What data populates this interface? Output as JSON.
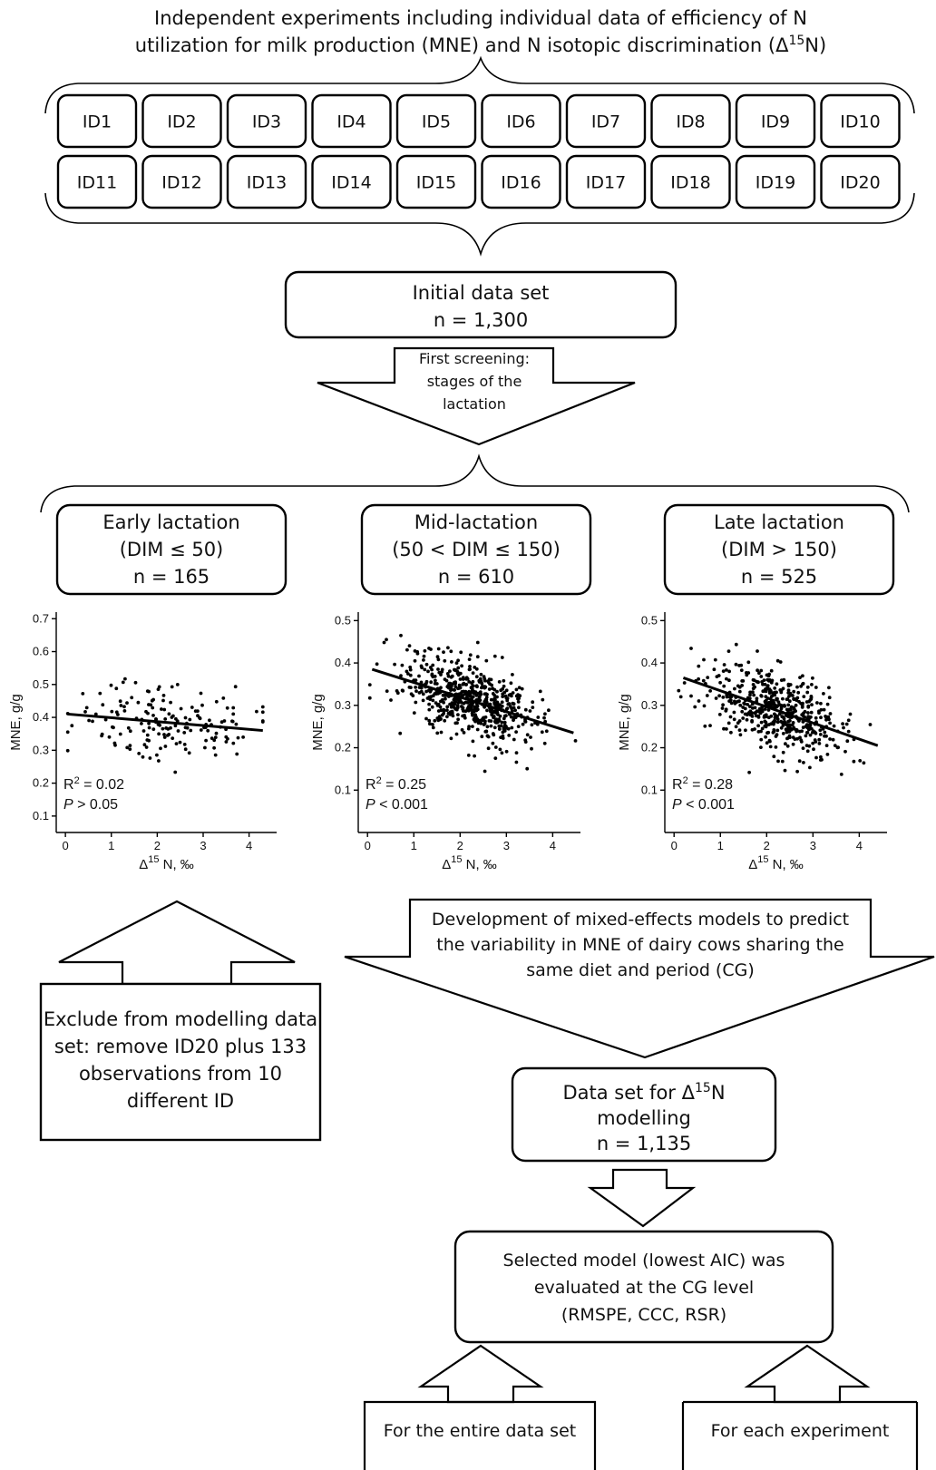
{
  "header": {
    "line1": "Independent experiments including individual data of efficiency of N",
    "line2a": "utilization for milk production (MNE) and N isotopic discrimination (Δ",
    "line2sup": "15",
    "line2b": "N)"
  },
  "experiments": [
    "ID1",
    "ID2",
    "ID3",
    "ID4",
    "ID5",
    "ID6",
    "ID7",
    "ID8",
    "ID9",
    "ID10",
    "ID11",
    "ID12",
    "ID13",
    "ID14",
    "ID15",
    "ID16",
    "ID17",
    "ID18",
    "ID19",
    "ID20"
  ],
  "initial": {
    "line1": "Initial data set",
    "line2": "n = 1,300"
  },
  "screening": {
    "line1": "First screening:",
    "line2": "stages of the",
    "line3": "lactation"
  },
  "stages": [
    {
      "line1": "Early lactation",
      "line2": "(DIM ≤ 50)",
      "line3": "n = 165"
    },
    {
      "line1": "Mid-lactation",
      "line2": "(50 < DIM ≤ 150)",
      "line3": "n = 610"
    },
    {
      "line1": "Late lactation",
      "line2": "(DIM > 150)",
      "line3": "n = 525"
    }
  ],
  "chart_data": [
    {
      "type": "scatter",
      "title": "Early lactation",
      "xlabel_pre": "Δ",
      "xlabel_sup": "15",
      "xlabel_post": " N, ‰",
      "ylabel": "MNE, g/g",
      "xticks": [
        "0",
        "1",
        "2",
        "3",
        "4"
      ],
      "yticks": [
        "0.1",
        "0.2",
        "0.3",
        "0.4",
        "0.5",
        "0.6",
        "0.7"
      ],
      "xlim": [
        -0.2,
        4.6
      ],
      "ylim": [
        0.05,
        0.72
      ],
      "n": 165,
      "x_range": [
        0.05,
        4.3
      ],
      "fit_line": {
        "x": [
          0.05,
          4.3
        ],
        "y": [
          0.41,
          0.36
        ]
      },
      "stat1_pre": "R",
      "stat1_sup": "2",
      "stat1_post": " = 0.02",
      "stat2_italic": "P",
      "stat2_post": " > 0.05"
    },
    {
      "type": "scatter",
      "title": "Mid-lactation",
      "xlabel_pre": "Δ",
      "xlabel_sup": "15",
      "xlabel_post": " N, ‰",
      "ylabel": "MNE, g/g",
      "xticks": [
        "0",
        "1",
        "2",
        "3",
        "4"
      ],
      "yticks": [
        "0.1",
        "0.2",
        "0.3",
        "0.4",
        "0.5"
      ],
      "xlim": [
        -0.2,
        4.6
      ],
      "ylim": [
        0.0,
        0.52
      ],
      "n": 610,
      "x_range": [
        0.05,
        4.5
      ],
      "fit_line": {
        "x": [
          0.1,
          4.45
        ],
        "y": [
          0.385,
          0.235
        ]
      },
      "stat1_pre": "R",
      "stat1_sup": "2",
      "stat1_post": " = 0.25",
      "stat2_italic": "P",
      "stat2_post": " < 0.001"
    },
    {
      "type": "scatter",
      "title": "Late lactation",
      "xlabel_pre": "Δ",
      "xlabel_sup": "15",
      "xlabel_post": " N, ‰",
      "ylabel": "MNE, g/g",
      "xticks": [
        "0",
        "1",
        "2",
        "3",
        "4"
      ],
      "yticks": [
        "0.1",
        "0.2",
        "0.3",
        "0.4",
        "0.5"
      ],
      "xlim": [
        -0.2,
        4.6
      ],
      "ylim": [
        0.0,
        0.52
      ],
      "n": 525,
      "x_range": [
        0.1,
        4.4
      ],
      "fit_line": {
        "x": [
          0.2,
          4.4
        ],
        "y": [
          0.365,
          0.205
        ]
      },
      "stat1_pre": "R",
      "stat1_sup": "2",
      "stat1_post": " = 0.28",
      "stat2_italic": "P",
      "stat2_post": " < 0.001"
    }
  ],
  "development": {
    "line1": "Development of mixed-effects models to predict",
    "line2": "the variability in MNE of dairy cows sharing the",
    "line3": "same diet and period (CG)"
  },
  "exclude": {
    "line1": "Exclude from modelling data",
    "line2": "set: remove ID20 plus 133",
    "line3": "observations from 10",
    "line4": "different ID"
  },
  "dataset": {
    "line1a": "Data set for Δ",
    "line1sup": "15",
    "line1b": "N",
    "line2": "modelling",
    "line3": "n = 1,135"
  },
  "selected": {
    "line1": "Selected model (lowest AIC) was",
    "line2": "evaluated at the CG level",
    "line3": "(RMSPE, CCC, RSR)"
  },
  "entire": "For the entire data set",
  "each": "For each experiment"
}
